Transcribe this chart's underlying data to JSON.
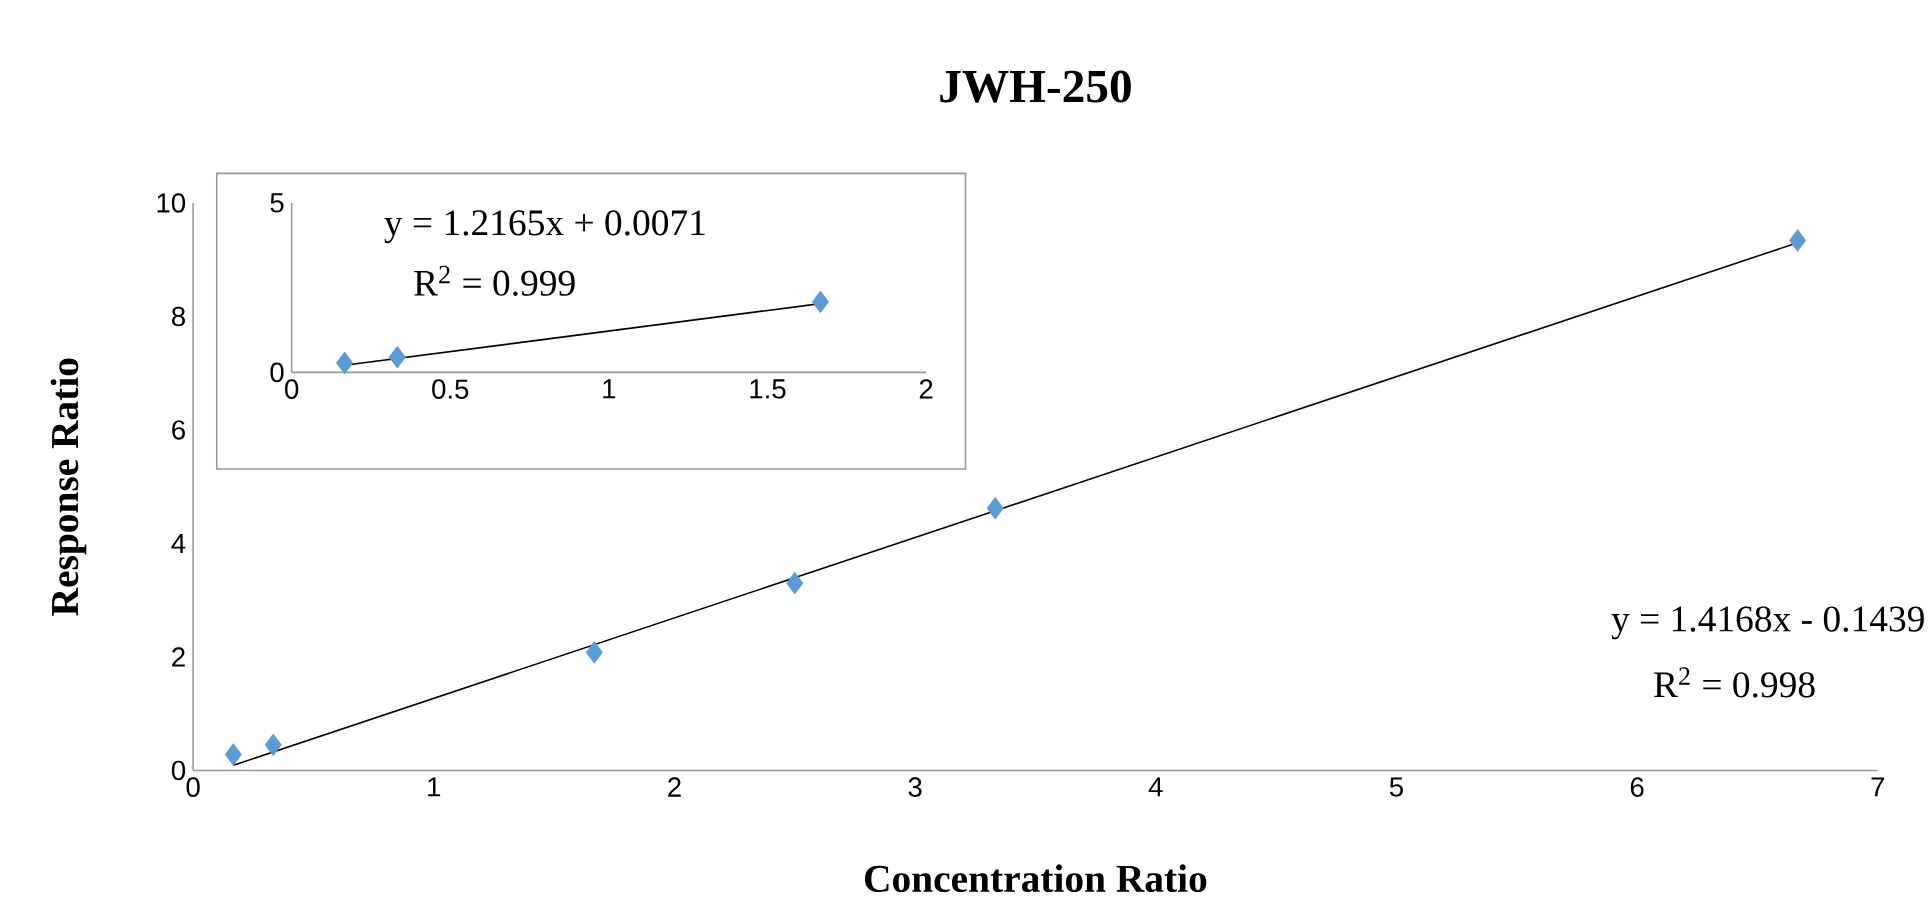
{
  "chart_data": [
    {
      "type": "scatter",
      "title": "JWH-250",
      "xlabel": "Concentration Ratio",
      "ylabel": "Response Ratio",
      "xlim": [
        0,
        7
      ],
      "ylim": [
        0,
        10
      ],
      "xticks": [
        0,
        1,
        2,
        3,
        4,
        5,
        6,
        7
      ],
      "yticks": [
        0,
        2,
        4,
        6,
        8,
        10
      ],
      "grid": false,
      "series": [
        {
          "color": "#5b9bd5",
          "marker": "diamond",
          "x": [
            0.167,
            0.333,
            1.667,
            2.5,
            3.333,
            6.667
          ],
          "values": [
            0.28,
            0.45,
            2.08,
            3.3,
            4.62,
            9.34
          ]
        },
        {
          "type": "line",
          "marker": "none",
          "color": "#000000",
          "x": [
            0.167,
            6.667
          ],
          "values": [
            0.09,
            9.3
          ]
        }
      ],
      "annotations": [
        "y = 1.4168x - 0.1439",
        "R$^{2}$ = 0.998"
      ]
    },
    {
      "type": "scatter",
      "xlim": [
        0,
        2
      ],
      "ylim": [
        0,
        5
      ],
      "xticks": [
        0,
        0.5,
        1,
        1.5,
        2
      ],
      "yticks": [
        0,
        5
      ],
      "grid": false,
      "series": [
        {
          "color": "#5b9bd5",
          "marker": "diamond",
          "x": [
            0.167,
            0.333,
            1.667
          ],
          "values": [
            0.28,
            0.45,
            2.08
          ]
        },
        {
          "type": "line",
          "marker": "none",
          "color": "#000000",
          "x": [
            0.167,
            1.667
          ],
          "values": [
            0.21,
            2.03
          ]
        }
      ],
      "annotations": [
        "y = 1.2165x + 0.0071",
        "R$^{2}$ = 0.999"
      ]
    }
  ]
}
